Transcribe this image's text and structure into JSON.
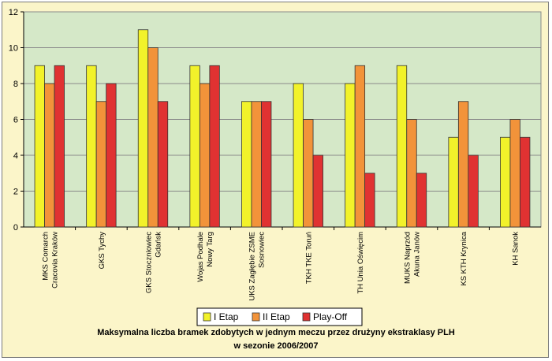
{
  "chart_data": {
    "type": "bar",
    "title": "Maksymalna  liczba bramek zdobytych w  jednym meczu przez drużyny ekstraklasy PLH",
    "subtitle": "w sezonie 2006/2007",
    "xlabel": "",
    "ylabel": "",
    "ylim": [
      0,
      12
    ],
    "yticks": [
      "0",
      "2",
      "4",
      "6",
      "8",
      "10",
      "12"
    ],
    "grid": true,
    "legend_position": "bottom",
    "categories": [
      "MKS Comarch\nCracovia Kraków",
      "GKS Tychy",
      "GKS Stoczniowiec\nGdańsk",
      "Wojas Podhale\nNowy Targ",
      "UKS Zagłębie ZSME\nSosnowiec",
      "TKH TKE Toruń",
      "TH Unia Oświęcim",
      "MUKS Naprzód\nAkuna Janów",
      "KS KTH Krynica",
      "KH Sanok"
    ],
    "series": [
      {
        "name": "I Etap",
        "color": "#f2f22a",
        "values": [
          9,
          9,
          11,
          9,
          7,
          8,
          8,
          9,
          5,
          5
        ]
      },
      {
        "name": "II Etap",
        "color": "#f2933a",
        "values": [
          8,
          7,
          10,
          8,
          7,
          6,
          9,
          6,
          7,
          6
        ]
      },
      {
        "name": "Play-Off",
        "color": "#e03232",
        "values": [
          9,
          8,
          7,
          9,
          7,
          4,
          3,
          3,
          4,
          5
        ]
      }
    ],
    "plot_bg": "#d5e8c8"
  }
}
